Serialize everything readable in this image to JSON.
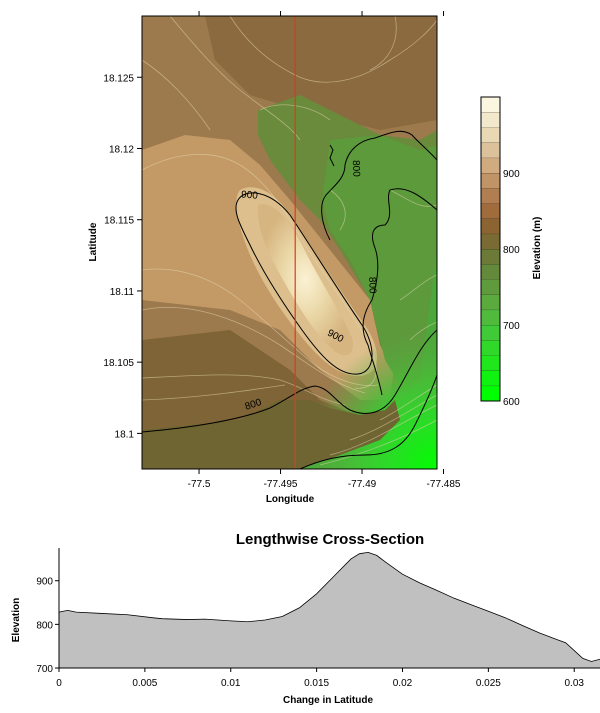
{
  "chart_data": [
    {
      "type": "heatmap",
      "title": "",
      "xlabel": "Longitude",
      "ylabel": "Latitude",
      "x_ticks": [
        -77.5,
        -77.495,
        -77.49,
        -77.485
      ],
      "x_tick_labels": [
        "-77.5",
        "-77.495",
        "-77.49",
        "-77.485"
      ],
      "y_ticks": [
        18.1,
        18.105,
        18.11,
        18.115,
        18.12,
        18.125
      ],
      "y_tick_labels": [
        "18.1",
        "18.105",
        "18.11",
        "18.115",
        "18.12",
        "18.125"
      ],
      "xlim": [
        -77.5035,
        -77.4854
      ],
      "ylim": [
        18.0975,
        18.1293
      ],
      "contour_labels": [
        {
          "text": "900",
          "lon": -77.4969,
          "lat": 18.1168,
          "rotate": 5
        },
        {
          "text": "900",
          "lon": -77.4916,
          "lat": 18.1069,
          "rotate": 28
        },
        {
          "text": "800",
          "lon": -77.4967,
          "lat": 18.1021,
          "rotate": -18
        },
        {
          "text": "800",
          "lon": -77.4893,
          "lat": 18.1104,
          "rotate": 88
        },
        {
          "text": "800",
          "lon": -77.4903,
          "lat": 18.1186,
          "rotate": 88
        }
      ],
      "cross_section_longitude": -77.4941,
      "colorbar": {
        "label": "Elevation (m)",
        "tick_labels": [
          "600",
          "700",
          "800",
          "900"
        ],
        "ticks": [
          600,
          700,
          800,
          900
        ],
        "range": [
          600,
          1000
        ],
        "colors": [
          "#00ff00",
          "#10f20f",
          "#20e61c",
          "#30d82a",
          "#40ca38",
          "#4fba3c",
          "#5aaa3e",
          "#5f9a3d",
          "#63893b",
          "#6c7a38",
          "#7a6a34",
          "#8c6432",
          "#a06c3c",
          "#b07e50",
          "#c09466",
          "#d0ab80",
          "#dcc29a",
          "#e8d8b4",
          "#f2e8cc",
          "#fbf6e0"
        ]
      }
    },
    {
      "type": "area",
      "title": "Lengthwise Cross-Section",
      "xlabel": "Change in Latitude",
      "ylabel": "Elevation",
      "xlim": [
        0,
        0.0315
      ],
      "ylim": [
        700,
        975
      ],
      "x_ticks": [
        0,
        0.005,
        0.01,
        0.015,
        0.02,
        0.025,
        0.03
      ],
      "x_tick_labels": [
        "0",
        "0.005",
        "0.01",
        "0.015",
        "0.02",
        "0.025",
        "0.03"
      ],
      "y_ticks": [
        700,
        800,
        900
      ],
      "y_tick_labels": [
        "700",
        "800",
        "900"
      ],
      "fill_color": "#c0c0c0",
      "x": [
        0,
        0.0005,
        0.001,
        0.0025,
        0.004,
        0.0055,
        0.006,
        0.0075,
        0.0085,
        0.01,
        0.011,
        0.012,
        0.013,
        0.014,
        0.015,
        0.016,
        0.017,
        0.0175,
        0.018,
        0.0185,
        0.019,
        0.02,
        0.021,
        0.022,
        0.023,
        0.024,
        0.025,
        0.026,
        0.027,
        0.028,
        0.029,
        0.0295,
        0.03,
        0.0305,
        0.031,
        0.0315
      ],
      "y": [
        828,
        832,
        828,
        825,
        822,
        815,
        813,
        811,
        812,
        808,
        806,
        810,
        818,
        838,
        870,
        910,
        950,
        962,
        965,
        958,
        943,
        915,
        895,
        878,
        860,
        845,
        830,
        815,
        797,
        780,
        765,
        758,
        740,
        722,
        715,
        720
      ]
    }
  ]
}
